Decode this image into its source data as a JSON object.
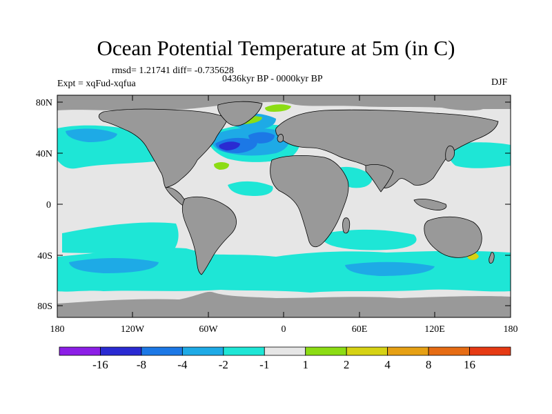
{
  "title": "Ocean Potential Temperature at 5m (in C)",
  "stats": "rmsd= 1.21741 diff= -0.735628",
  "experiment": "Expt = xqFud-xqfua",
  "period": "0436kyr BP - 0000kyr BP",
  "season": "DJF",
  "lat_ticks": [
    "80N",
    "40N",
    "0",
    "40S",
    "80S"
  ],
  "lon_ticks": [
    "180",
    "120W",
    "60W",
    "0",
    "60E",
    "120E",
    "180"
  ],
  "legend": {
    "colors": [
      "#8c1ee6",
      "#2a2ad2",
      "#1c78e6",
      "#1eaae6",
      "#1ee6d6",
      "#e6e6e6",
      "#8cdc14",
      "#d6d214",
      "#e6a014",
      "#e66c14",
      "#e63a14"
    ],
    "labels": [
      "-16",
      "-8",
      "-4",
      "-2",
      "-1",
      "1",
      "2",
      "4",
      "8",
      "16"
    ]
  },
  "palette": {
    "land": "#999999",
    "no_change": "#e6e6e6",
    "cool_small": "#1ee6d6",
    "cool_mid": "#1eaae6",
    "cool_large": "#1c78e6",
    "cool_strong": "#2a2ad2",
    "warm_small": "#8cdc14",
    "warm_mid": "#d6d214"
  }
}
